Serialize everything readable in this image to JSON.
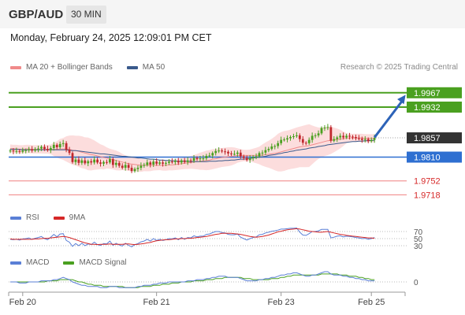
{
  "header": {
    "symbol": "GBP/AUD",
    "timeframe": "30 MIN",
    "datetime": "Monday, February 24, 2025 12:09:01 PM CET",
    "credit": "Research © 2025 Trading Central"
  },
  "legends": {
    "price": [
      {
        "label": "MA 20 + Bollinger Bands",
        "color": "#f08a8a"
      },
      {
        "label": "MA 50",
        "color": "#3a5a8c"
      }
    ],
    "rsi": [
      {
        "label": "RSI",
        "color": "#5a7fd6"
      },
      {
        "label": "9MA",
        "color": "#d62828"
      }
    ],
    "macd": [
      {
        "label": "MACD",
        "color": "#5a7fd6"
      },
      {
        "label": "MACD Signal",
        "color": "#4aa020"
      }
    ]
  },
  "colors": {
    "green_level": "#4aa020",
    "blue_level": "#2e6fd1",
    "red_level": "#f08080",
    "candle_up": "#4aa020",
    "candle_down": "#c0282d",
    "band_fill": "#fbd7d7",
    "current_price": "#333333",
    "arrow": "#2d63b8"
  },
  "chart_data": [
    {
      "type": "candlestick",
      "name": "price",
      "ylim": [
        1.969,
        2.0005
      ],
      "x_ticks": [
        {
          "index": 4,
          "label": "Feb 20"
        },
        {
          "index": 47,
          "label": "Feb 21"
        },
        {
          "index": 87,
          "label": "Feb 23"
        },
        {
          "index": 116,
          "label": "Feb 25"
        }
      ],
      "levels": [
        {
          "value": 1.9967,
          "label": "1.9967",
          "kind": "resistance"
        },
        {
          "value": 1.9932,
          "label": "1.9932",
          "kind": "resistance"
        },
        {
          "value": 1.9857,
          "label": "1.9857",
          "kind": "current"
        },
        {
          "value": 1.981,
          "label": "1.9810",
          "kind": "pivot"
        },
        {
          "value": 1.9752,
          "label": "1.9752",
          "kind": "support"
        },
        {
          "value": 1.9718,
          "label": "1.9718",
          "kind": "support"
        }
      ],
      "arrow": {
        "from_index": 117,
        "from_value": 1.9858,
        "to_index": 127,
        "to_value": 1.9962
      },
      "series": [
        {
          "name": "close",
          "values": [
            1.9826,
            1.9824,
            1.9825,
            1.9823,
            1.9826,
            1.9827,
            1.9829,
            1.9826,
            1.9829,
            1.9831,
            1.9835,
            1.983,
            1.9827,
            1.9832,
            1.984,
            1.9834,
            1.9842,
            1.9844,
            1.9828,
            1.982,
            1.9798,
            1.9804,
            1.9796,
            1.9802,
            1.9795,
            1.98,
            1.9797,
            1.9804,
            1.9797,
            1.9794,
            1.9798,
            1.9797,
            1.9805,
            1.9791,
            1.9796,
            1.9789,
            1.9784,
            1.9791,
            1.9784,
            1.9776,
            1.9781,
            1.9784,
            1.9789,
            1.9791,
            1.9797,
            1.9792,
            1.9799,
            1.9794,
            1.9797,
            1.9794,
            1.9796,
            1.9799,
            1.9798,
            1.9801,
            1.9797,
            1.9802,
            1.9798,
            1.9802,
            1.9801,
            1.9808,
            1.9805,
            1.9807,
            1.9807,
            1.9813,
            1.9814,
            1.982,
            1.9825,
            1.9826,
            1.9824,
            1.9823,
            1.9819,
            1.9818,
            1.9818,
            1.9821,
            1.9812,
            1.9808,
            1.9803,
            1.9807,
            1.981,
            1.9812,
            1.982,
            1.9821,
            1.9827,
            1.983,
            1.9836,
            1.9837,
            1.9844,
            1.9852,
            1.9853,
            1.9856,
            1.9859,
            1.9861,
            1.9863,
            1.9854,
            1.9845,
            1.9844,
            1.9852,
            1.9862,
            1.9863,
            1.9868,
            1.9881,
            1.9882,
            1.9883,
            1.985,
            1.9854,
            1.9858,
            1.9862,
            1.9858,
            1.9862,
            1.986,
            1.9859,
            1.9856,
            1.9855,
            1.9852,
            1.9854,
            1.9849,
            1.9852,
            1.9857
          ]
        },
        {
          "name": "ma20",
          "values": [
            1.9831,
            1.983,
            1.983,
            1.9829,
            1.9829,
            1.983,
            1.983,
            1.9829,
            1.9829,
            1.9829,
            1.9829,
            1.9829,
            1.9829,
            1.9829,
            1.9829,
            1.9829,
            1.983,
            1.983,
            1.983,
            1.9829,
            1.9827,
            1.9826,
            1.9824,
            1.9822,
            1.982,
            1.9818,
            1.9816,
            1.9815,
            1.9813,
            1.9811,
            1.9809,
            1.9808,
            1.9806,
            1.9804,
            1.9802,
            1.98,
            1.9798,
            1.9796,
            1.9794,
            1.9793,
            1.9792,
            1.9791,
            1.979,
            1.979,
            1.979,
            1.979,
            1.979,
            1.979,
            1.979,
            1.979,
            1.979,
            1.9791,
            1.9791,
            1.9792,
            1.9793,
            1.9794,
            1.9795,
            1.9796,
            1.9797,
            1.9798,
            1.9799,
            1.98,
            1.9801,
            1.9802,
            1.9803,
            1.9805,
            1.9806,
            1.9808,
            1.9809,
            1.981,
            1.9811,
            1.9812,
            1.9813,
            1.9814,
            1.9814,
            1.9814,
            1.9814,
            1.9814,
            1.9814,
            1.9814,
            1.9814,
            1.9815,
            1.9816,
            1.9817,
            1.9818,
            1.9819,
            1.9821,
            1.9823,
            1.9825,
            1.9827,
            1.9829,
            1.9831,
            1.9833,
            1.9835,
            1.9836,
            1.9837,
            1.9838,
            1.984,
            1.9842,
            1.9844,
            1.9846,
            1.9848,
            1.985,
            1.9851,
            1.9852,
            1.9853,
            1.9854,
            1.9855,
            1.9856,
            1.9857,
            1.9857,
            1.9857,
            1.9857,
            1.9857,
            1.9856,
            1.9856,
            1.9856,
            1.9856
          ]
        },
        {
          "name": "ma50",
          "values": [
            1.9829,
            1.9829,
            1.9829,
            1.9829,
            1.9828,
            1.9828,
            1.9828,
            1.9828,
            1.9828,
            1.9828,
            1.9828,
            1.9828,
            1.9828,
            1.9828,
            1.9828,
            1.9828,
            1.9828,
            1.9828,
            1.9828,
            1.9827,
            1.9826,
            1.9826,
            1.9825,
            1.9824,
            1.9823,
            1.9822,
            1.9821,
            1.982,
            1.9819,
            1.9818,
            1.9818,
            1.9817,
            1.9816,
            1.9815,
            1.9814,
            1.9813,
            1.9812,
            1.9812,
            1.9811,
            1.981,
            1.9809,
            1.9808,
            1.9808,
            1.9807,
            1.9806,
            1.9805,
            1.9805,
            1.9804,
            1.9803,
            1.9803,
            1.9802,
            1.9802,
            1.9801,
            1.9801,
            1.98,
            1.98,
            1.98,
            1.98,
            1.9799,
            1.9799,
            1.9799,
            1.9799,
            1.9799,
            1.9799,
            1.98,
            1.98,
            1.98,
            1.9801,
            1.9801,
            1.9802,
            1.9802,
            1.9803,
            1.9803,
            1.9804,
            1.9805,
            1.9805,
            1.9806,
            1.9807,
            1.9808,
            1.9809,
            1.981,
            1.9811,
            1.9812,
            1.9814,
            1.9815,
            1.9816,
            1.9818,
            1.9819,
            1.9821,
            1.9822,
            1.9824,
            1.9825,
            1.9827,
            1.9828,
            1.9829,
            1.983,
            1.9832,
            1.9833,
            1.9834,
            1.9836,
            1.9837,
            1.9838,
            1.984,
            1.9841,
            1.9842,
            1.9843,
            1.9844,
            1.9845,
            1.9846,
            1.9847,
            1.9848,
            1.9848,
            1.9849,
            1.9849,
            1.985,
            1.985,
            1.9851,
            1.9851
          ]
        }
      ]
    },
    {
      "type": "line",
      "name": "RSI",
      "ylim": [
        0,
        100
      ],
      "reference_levels": [
        {
          "value": 70,
          "label": "70"
        },
        {
          "value": 50,
          "label": "50"
        },
        {
          "value": 30,
          "label": "30"
        }
      ],
      "series": [
        {
          "name": "RSI",
          "values": [
            48,
            47,
            48,
            46,
            49,
            50,
            52,
            48,
            51,
            53,
            56,
            50,
            47,
            54,
            62,
            55,
            63,
            64,
            45,
            40,
            28,
            36,
            30,
            37,
            30,
            35,
            33,
            40,
            33,
            31,
            36,
            35,
            43,
            31,
            37,
            32,
            29,
            37,
            31,
            27,
            33,
            36,
            41,
            43,
            48,
            43,
            50,
            45,
            48,
            45,
            47,
            50,
            49,
            52,
            47,
            53,
            48,
            53,
            52,
            58,
            55,
            57,
            57,
            62,
            63,
            67,
            70,
            70,
            67,
            66,
            62,
            61,
            61,
            63,
            54,
            50,
            46,
            50,
            53,
            55,
            61,
            62,
            66,
            68,
            71,
            72,
            74,
            77,
            77,
            78,
            79,
            79,
            80,
            68,
            60,
            59,
            64,
            70,
            70,
            72,
            76,
            76,
            76,
            52,
            54,
            57,
            58,
            55,
            57,
            56,
            55,
            53,
            52,
            50,
            51,
            48,
            50,
            53
          ]
        },
        {
          "name": "9MA",
          "values": [
            49,
            48,
            48,
            48,
            48,
            48,
            48,
            48,
            49,
            49,
            50,
            51,
            51,
            52,
            53,
            54,
            55,
            56,
            55,
            53,
            50,
            47,
            44,
            41,
            38,
            36,
            34,
            34,
            33,
            34,
            34,
            34,
            35,
            34,
            34,
            34,
            34,
            35,
            35,
            34,
            33,
            34,
            35,
            36,
            38,
            39,
            42,
            44,
            45,
            46,
            47,
            47,
            48,
            49,
            49,
            50,
            50,
            51,
            51,
            52,
            53,
            54,
            55,
            56,
            58,
            60,
            62,
            63,
            65,
            65,
            65,
            65,
            64,
            63,
            62,
            60,
            58,
            56,
            55,
            54,
            55,
            56,
            58,
            60,
            63,
            66,
            69,
            71,
            73,
            75,
            76,
            77,
            78,
            77,
            75,
            73,
            71,
            70,
            69,
            68,
            68,
            69,
            70,
            68,
            66,
            64,
            62,
            61,
            59,
            58,
            57,
            56,
            55,
            54,
            53,
            52,
            52,
            51
          ]
        }
      ]
    },
    {
      "type": "line",
      "name": "MACD",
      "ylim": [
        -0.0012,
        0.0012
      ],
      "reference_levels": [
        {
          "value": 0,
          "label": "0"
        }
      ],
      "series": [
        {
          "name": "MACD",
          "values": [
            0.0,
            0.0,
            0.0,
            -0.0001,
            -0.0001,
            -0.0001,
            0.0,
            0.0,
            0.0,
            0.0,
            0.0001,
            0.0001,
            0.0001,
            0.0001,
            0.0002,
            0.0002,
            0.0003,
            0.0004,
            0.0003,
            0.0002,
            0.0,
            -0.0001,
            -0.0002,
            -0.0003,
            -0.0003,
            -0.0004,
            -0.0004,
            -0.0004,
            -0.0004,
            -0.0005,
            -0.0005,
            -0.0005,
            -0.0004,
            -0.0004,
            -0.0004,
            -0.0005,
            -0.0005,
            -0.0005,
            -0.0005,
            -0.0005,
            -0.0005,
            -0.0004,
            -0.0004,
            -0.0003,
            -0.0003,
            -0.0003,
            -0.0002,
            -0.0002,
            -0.0001,
            -0.0001,
            -0.0001,
            0.0,
            0.0,
            0.0,
            0.0,
            0.0,
            0.0,
            0.0001,
            0.0001,
            0.0001,
            0.0002,
            0.0002,
            0.0002,
            0.0003,
            0.0003,
            0.0004,
            0.0004,
            0.0005,
            0.0005,
            0.0005,
            0.0004,
            0.0004,
            0.0004,
            0.0004,
            0.0003,
            0.0002,
            0.0001,
            0.0001,
            0.0001,
            0.0001,
            0.0002,
            0.0002,
            0.0003,
            0.0003,
            0.0004,
            0.0004,
            0.0005,
            0.0006,
            0.0006,
            0.0007,
            0.0007,
            0.0008,
            0.0008,
            0.0007,
            0.0006,
            0.0005,
            0.0005,
            0.0006,
            0.0006,
            0.0007,
            0.0008,
            0.0009,
            0.0009,
            0.0007,
            0.0006,
            0.0006,
            0.0006,
            0.0005,
            0.0005,
            0.0004,
            0.0004,
            0.0003,
            0.0003,
            0.0002,
            0.0002,
            0.0001,
            0.0001,
            0.0001
          ]
        },
        {
          "name": "MACD Signal",
          "values": [
            0.0,
            0.0,
            0.0,
            0.0,
            0.0,
            0.0,
            0.0,
            0.0,
            0.0,
            0.0,
            0.0,
            0.0,
            0.0001,
            0.0001,
            0.0001,
            0.0001,
            0.0002,
            0.0002,
            0.0002,
            0.0002,
            0.0002,
            0.0001,
            0.0,
            0.0,
            -0.0001,
            -0.0002,
            -0.0002,
            -0.0003,
            -0.0003,
            -0.0003,
            -0.0004,
            -0.0004,
            -0.0004,
            -0.0004,
            -0.0004,
            -0.0004,
            -0.0004,
            -0.0005,
            -0.0005,
            -0.0005,
            -0.0005,
            -0.0005,
            -0.0004,
            -0.0004,
            -0.0004,
            -0.0004,
            -0.0003,
            -0.0003,
            -0.0003,
            -0.0002,
            -0.0002,
            -0.0002,
            -0.0001,
            -0.0001,
            -0.0001,
            0.0,
            0.0,
            0.0,
            0.0,
            0.0001,
            0.0001,
            0.0001,
            0.0001,
            0.0002,
            0.0002,
            0.0002,
            0.0003,
            0.0003,
            0.0003,
            0.0004,
            0.0004,
            0.0004,
            0.0004,
            0.0004,
            0.0004,
            0.0003,
            0.0003,
            0.0003,
            0.0002,
            0.0002,
            0.0002,
            0.0002,
            0.0002,
            0.0002,
            0.0003,
            0.0003,
            0.0003,
            0.0004,
            0.0004,
            0.0005,
            0.0005,
            0.0006,
            0.0006,
            0.0006,
            0.0006,
            0.0006,
            0.0006,
            0.0006,
            0.0006,
            0.0006,
            0.0007,
            0.0007,
            0.0007,
            0.0007,
            0.0007,
            0.0007,
            0.0006,
            0.0006,
            0.0006,
            0.0005,
            0.0005,
            0.0005,
            0.0004,
            0.0004,
            0.0003,
            0.0003,
            0.0002,
            0.0002
          ]
        }
      ]
    }
  ]
}
